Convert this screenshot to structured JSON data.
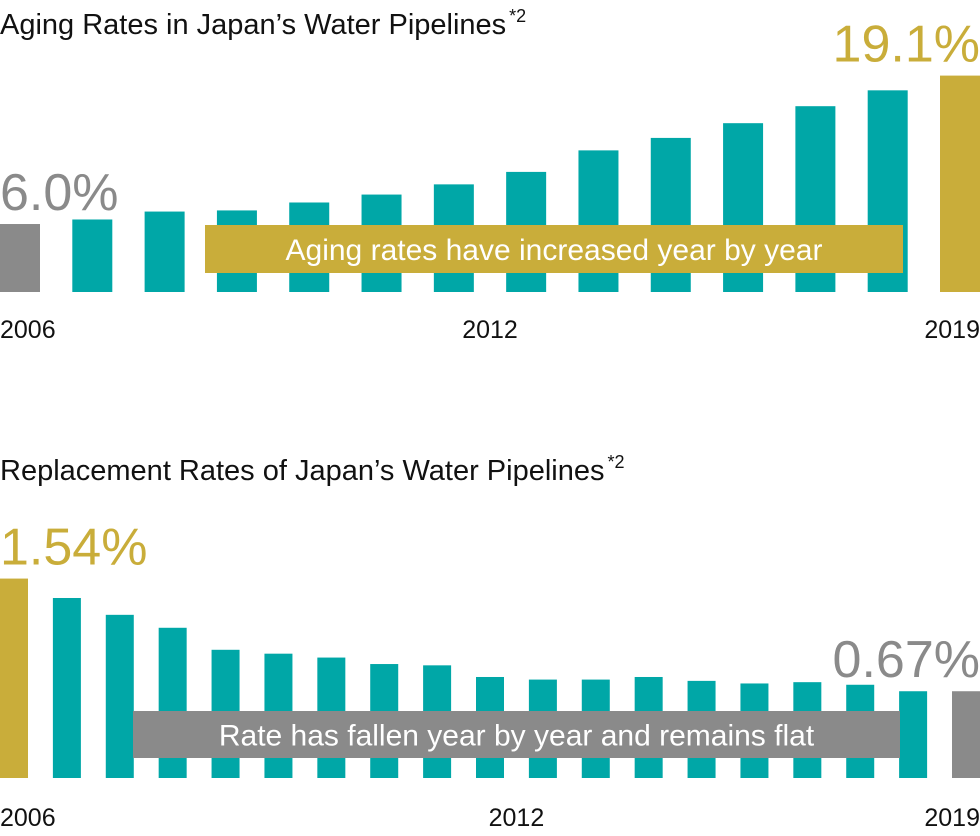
{
  "chart_data": [
    {
      "type": "bar",
      "title": "Aging Rates in Japan’s Water Pipelines",
      "footnote": "*2",
      "annotation": "Aging rates have increased year by year",
      "annotation_color": "#c9ad3a",
      "categories": [
        "2006",
        null,
        null,
        null,
        null,
        null,
        "2012",
        null,
        null,
        null,
        null,
        null,
        null,
        "2019"
      ],
      "values": [
        6.0,
        6.4,
        7.1,
        7.2,
        7.9,
        8.6,
        9.5,
        10.6,
        12.5,
        13.6,
        14.9,
        16.4,
        17.8,
        19.1
      ],
      "value_labels": [
        "6.0%",
        null,
        null,
        null,
        null,
        null,
        null,
        null,
        null,
        null,
        null,
        null,
        null,
        "19.1%"
      ],
      "colors": [
        "#8a8a8a",
        "#00a7a7",
        "#00a7a7",
        "#00a7a7",
        "#00a7a7",
        "#00a7a7",
        "#00a7a7",
        "#00a7a7",
        "#00a7a7",
        "#00a7a7",
        "#00a7a7",
        "#00a7a7",
        "#00a7a7",
        "#c9ad3a"
      ],
      "ylim": [
        0,
        20
      ]
    },
    {
      "type": "bar",
      "title": "Replacement Rates of Japan’s Water Pipelines",
      "footnote": "*2",
      "annotation": "Rate has fallen year by year and remains flat",
      "annotation_color": "#8a8a8a",
      "categories": [
        "2006",
        null,
        null,
        null,
        null,
        null,
        null,
        null,
        null,
        "2012",
        null,
        null,
        null,
        null,
        null,
        null,
        null,
        null,
        "2019"
      ],
      "values": [
        1.54,
        1.39,
        1.26,
        1.16,
        0.99,
        0.96,
        0.93,
        0.88,
        0.87,
        0.78,
        0.76,
        0.76,
        0.78,
        0.75,
        0.73,
        0.74,
        0.72,
        0.67,
        0.67
      ],
      "value_labels": [
        "1.54%",
        null,
        null,
        null,
        null,
        null,
        null,
        null,
        null,
        null,
        null,
        null,
        null,
        null,
        null,
        null,
        null,
        null,
        "0.67%"
      ],
      "colors": [
        "#c9ad3a",
        "#00a7a7",
        "#00a7a7",
        "#00a7a7",
        "#00a7a7",
        "#00a7a7",
        "#00a7a7",
        "#00a7a7",
        "#00a7a7",
        "#00a7a7",
        "#00a7a7",
        "#00a7a7",
        "#00a7a7",
        "#00a7a7",
        "#00a7a7",
        "#00a7a7",
        "#00a7a7",
        "#00a7a7",
        "#8a8a8a"
      ],
      "ylim": [
        0,
        1.6
      ]
    }
  ]
}
